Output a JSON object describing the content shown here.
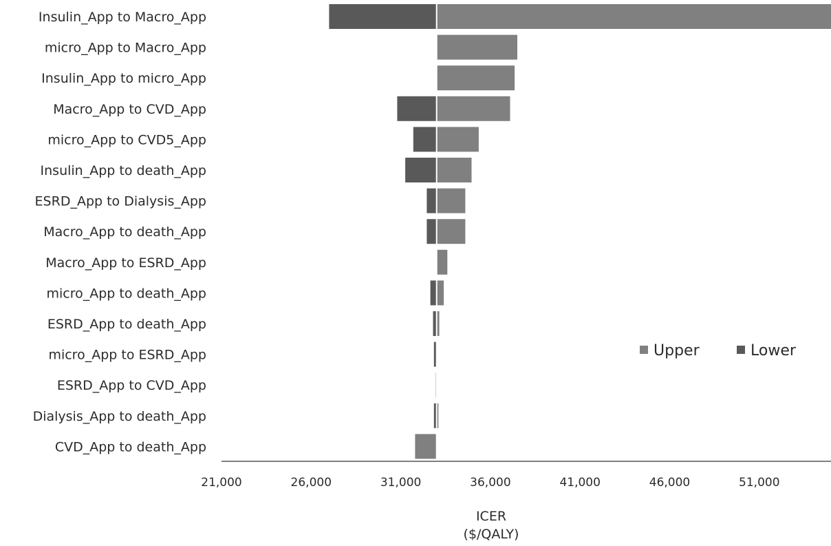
{
  "chart_data": {
    "type": "bar",
    "orientation": "horizontal",
    "chart_subtype": "tornado",
    "categories": [
      "Insulin_App to Macro_App",
      "micro_App to Macro_App",
      "Insulin_App to micro_App",
      "Macro_App to CVD_App",
      "micro_App to CVD5_App",
      "Insulin_App to death_App",
      "ESRD_App to Dialysis_App",
      "Macro_App to death_App",
      "Macro_App to ESRD_App",
      "micro_App to death_App",
      "ESRD_App to death_App",
      "micro_App to ESRD_App",
      "ESRD_App to CVD_App",
      "Dialysis_App to death_App",
      "CVD_App to death_App"
    ],
    "base_value": 33000,
    "series": [
      {
        "name": "Upper",
        "color": "#808080",
        "values": [
          55000,
          37500,
          37350,
          37100,
          35350,
          34950,
          34600,
          34600,
          33600,
          33400,
          33150,
          33000,
          33000,
          33100,
          31800
        ]
      },
      {
        "name": "Lower",
        "color": "#595959",
        "values": [
          27000,
          33000,
          33000,
          30800,
          31700,
          31250,
          32450,
          32450,
          33000,
          32650,
          32800,
          32850,
          32950,
          32850,
          33000
        ]
      }
    ],
    "x_ticks": [
      "21,000",
      "26,000",
      "31,000",
      "36,000",
      "41,000",
      "46,000",
      "51,000"
    ],
    "xlim": [
      21000,
      55000
    ],
    "xlabel_lines": [
      "ICER",
      "($/QALY)"
    ],
    "legend": [
      "Upper",
      "Lower"
    ],
    "legend_position": "right",
    "grid": false
  }
}
